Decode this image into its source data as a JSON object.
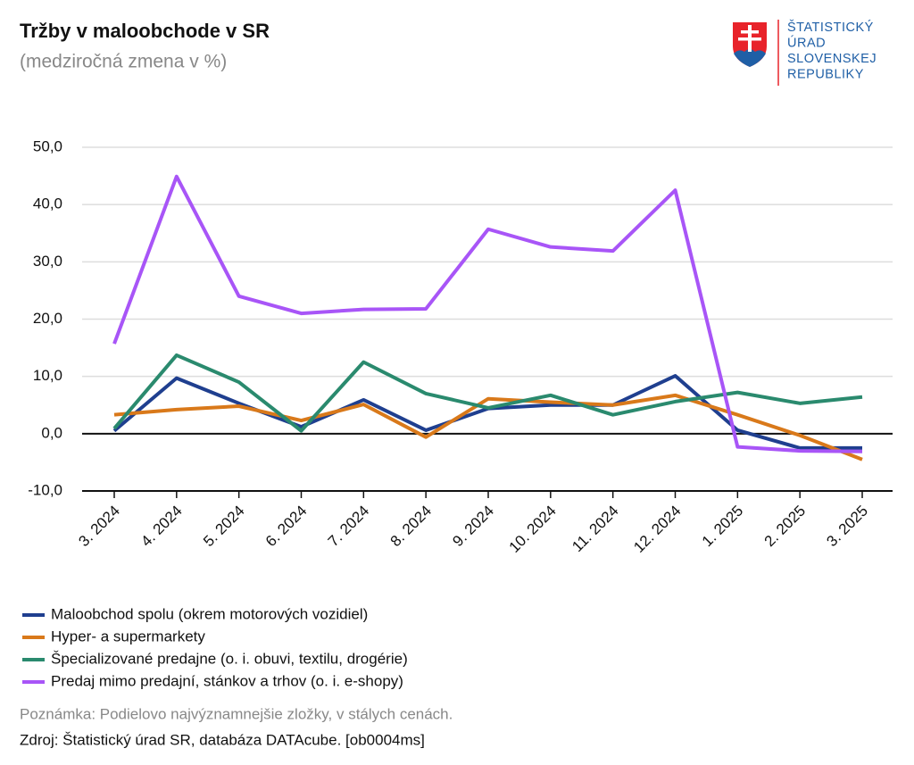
{
  "chart_data": {
    "type": "line",
    "title": "Tržby v maloobchode v SR",
    "subtitle": "(medziročná zmena v %)",
    "logo_lines": [
      "ŠTATISTICKÝ",
      "ÚRAD",
      "SLOVENSKEJ",
      "REPUBLIKY"
    ],
    "categories": [
      "3. 2024",
      "4. 2024",
      "5. 2024",
      "6. 2024",
      "7. 2024",
      "8. 2024",
      "9. 2024",
      "10. 2024",
      "11. 2024",
      "12. 2024",
      "1. 2025",
      "2. 2025",
      "3. 2025"
    ],
    "series": [
      {
        "name": "Maloobchod spolu (okrem motorových vozidiel)",
        "color": "#1f3f8f",
        "values": [
          0.5,
          9.7,
          5.3,
          1.2,
          5.9,
          0.6,
          4.4,
          5.0,
          5.0,
          10.1,
          0.6,
          -2.5,
          -2.5
        ]
      },
      {
        "name": "Hyper- a supermarkety",
        "color": "#d9791a",
        "values": [
          3.3,
          4.2,
          4.8,
          2.3,
          5.1,
          -0.6,
          6.1,
          5.5,
          5.0,
          6.7,
          3.3,
          -0.3,
          -4.5
        ]
      },
      {
        "name": "Špecializované predajne (o. i. obuvi, textilu, drogérie)",
        "color": "#2a8a6e",
        "values": [
          0.9,
          13.7,
          9.0,
          0.5,
          12.5,
          7.0,
          4.5,
          6.7,
          3.3,
          5.6,
          7.2,
          5.3,
          6.4
        ]
      },
      {
        "name": "Predaj mimo predajní, stánkov a trhov (o. i. e-shopy)",
        "color": "#a855f7",
        "values": [
          15.7,
          44.9,
          24.0,
          21.0,
          21.7,
          21.8,
          35.7,
          32.6,
          31.9,
          42.5,
          -2.3,
          -3.0,
          -3.1
        ]
      }
    ],
    "ylim": [
      -10,
      50
    ],
    "yticks": [
      {
        "value": -10,
        "label": "-10,0"
      },
      {
        "value": 0,
        "label": "0,0"
      },
      {
        "value": 10,
        "label": "10,0"
      },
      {
        "value": 20,
        "label": "20,0"
      },
      {
        "value": 30,
        "label": "30,0"
      },
      {
        "value": 40,
        "label": "40,0"
      },
      {
        "value": 50,
        "label": "50,0"
      }
    ],
    "grid": true,
    "legend": "bottom",
    "note": "Poznámka: Podielovo najvýznamnejšie zložky, v stálych cenách.",
    "source": "Zdroj: Štatistický úrad SR, databáza DATAcube. [ob0004ms]"
  }
}
